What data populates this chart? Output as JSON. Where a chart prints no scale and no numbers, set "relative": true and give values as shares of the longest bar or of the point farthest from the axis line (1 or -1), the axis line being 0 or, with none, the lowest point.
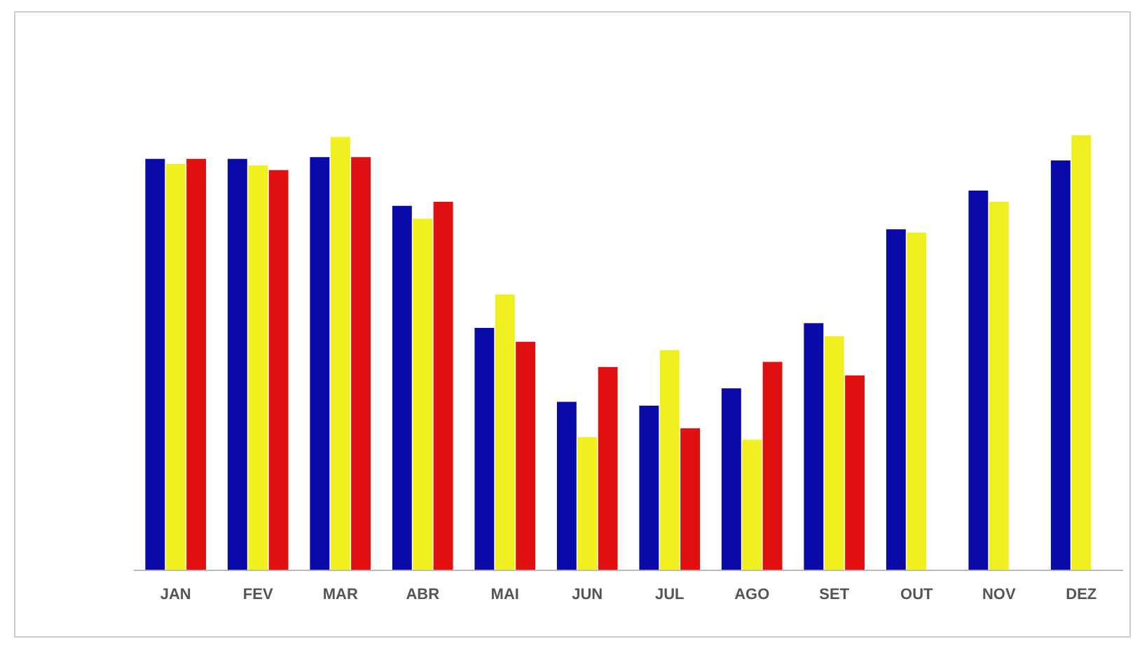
{
  "chart_data": {
    "type": "bar",
    "relative": true,
    "categories": [
      "JAN",
      "FEV",
      "MAR",
      "ABR",
      "MAI",
      "JUN",
      "JUL",
      "AGO",
      "SET",
      "OUT",
      "NOV",
      "DEZ"
    ],
    "series": [
      {
        "color": "#0a0aa8",
        "values": [
          0.946,
          0.946,
          0.95,
          0.838,
          0.557,
          0.387,
          0.378,
          0.418,
          0.568,
          0.784,
          0.873,
          0.942
        ]
      },
      {
        "color": "#f0f020",
        "values": [
          0.934,
          0.931,
          0.996,
          0.808,
          0.634,
          0.306,
          0.506,
          0.3,
          0.538,
          0.776,
          0.847,
          1
        ]
      },
      {
        "color": "#e01010",
        "values": [
          0.946,
          0.92,
          0.95,
          0.847,
          0.525,
          0.467,
          0.326,
          0.479,
          0.448,
          null,
          null,
          null
        ]
      }
    ]
  }
}
